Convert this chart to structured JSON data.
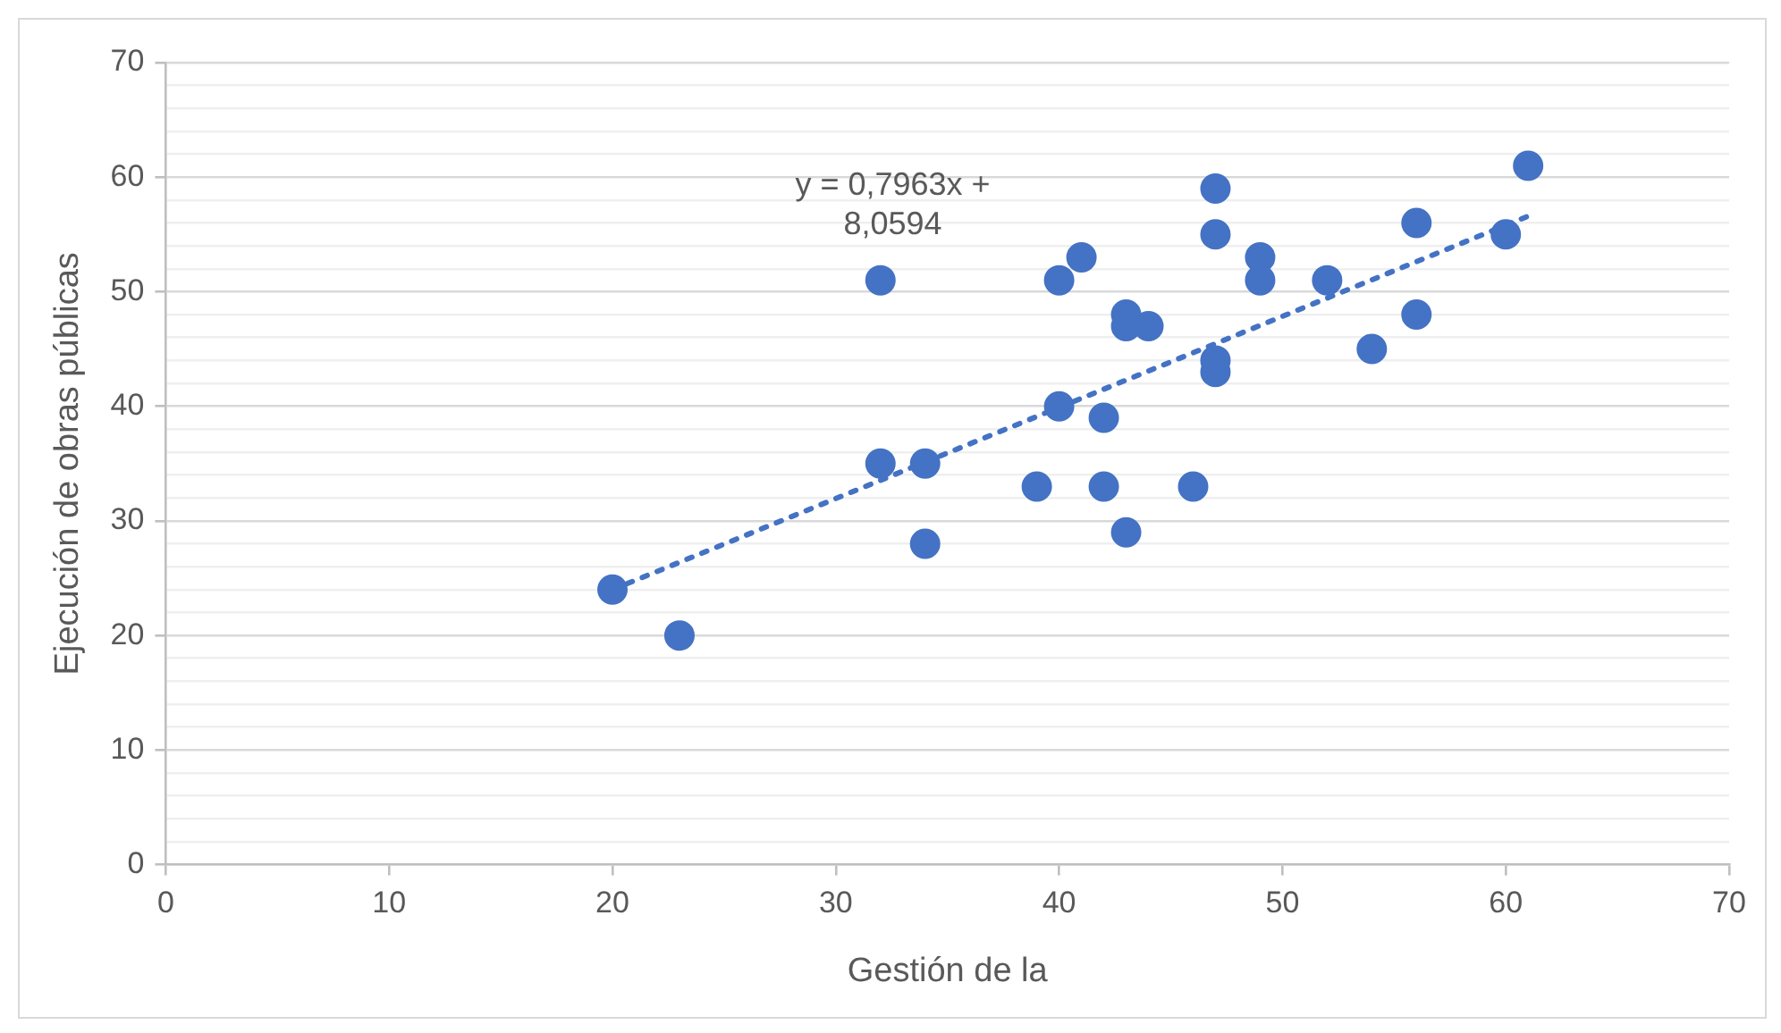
{
  "chart_data": {
    "type": "scatter",
    "xlabel": "Gestión de la",
    "ylabel": "Ejecución de obras públicas",
    "xlim": [
      0,
      70
    ],
    "xticks": [
      0,
      10,
      20,
      30,
      40,
      50,
      60,
      70
    ],
    "ylim": [
      0,
      70
    ],
    "yticks": [
      0,
      {
        "value": 2,
        "label": null
      },
      {
        "value": 4,
        "label": null
      },
      {
        "value": 6,
        "label": null
      },
      {
        "value": 8,
        "label": null
      },
      10,
      {
        "value": 12,
        "label": null
      },
      {
        "value": 14,
        "label": null
      },
      {
        "value": 16,
        "label": null
      },
      {
        "value": 18,
        "label": null
      },
      20,
      {
        "value": 22,
        "label": null
      },
      {
        "value": 24,
        "label": null
      },
      {
        "value": 26,
        "label": null
      },
      {
        "value": 28,
        "label": null
      },
      30,
      {
        "value": 32,
        "label": null
      },
      {
        "value": 34,
        "label": null
      },
      {
        "value": 36,
        "label": null
      },
      {
        "value": 38,
        "label": null
      },
      40,
      {
        "value": 42,
        "label": null
      },
      {
        "value": 44,
        "label": null
      },
      {
        "value": 46,
        "label": null
      },
      {
        "value": 48,
        "label": null
      },
      50,
      {
        "value": 52,
        "label": null
      },
      {
        "value": 54,
        "label": null
      },
      {
        "value": 56,
        "label": null
      },
      {
        "value": 58,
        "label": null
      },
      60,
      {
        "value": 62,
        "label": null
      },
      {
        "value": 64,
        "label": null
      },
      {
        "value": 66,
        "label": null
      },
      {
        "value": 68,
        "label": null
      },
      70
    ],
    "grid": "y",
    "legend": false,
    "marker": "circle",
    "series": [
      {
        "type": "scatter",
        "color": "#4472c4",
        "x": [
          20,
          23,
          32,
          32,
          34,
          34,
          39,
          40,
          40,
          41,
          42,
          42,
          43,
          43,
          43,
          44,
          46,
          47,
          47,
          47,
          47,
          49,
          49,
          52,
          54,
          56,
          56,
          60,
          61
        ],
        "values": [
          24,
          20,
          51,
          35,
          35,
          28,
          33,
          51,
          40,
          53,
          39,
          33,
          48,
          47,
          29,
          47,
          33,
          59,
          55,
          44,
          43,
          53,
          51,
          51,
          45,
          56,
          48,
          55,
          61
        ]
      },
      {
        "type": "line",
        "color": "#4472c4",
        "line_style": "dotted",
        "marker": "none",
        "x": [
          20,
          61
        ],
        "values": [
          24,
          56.6
        ]
      }
    ],
    "annotations": [
      "y = 0,7963x +\n8,0594"
    ]
  }
}
